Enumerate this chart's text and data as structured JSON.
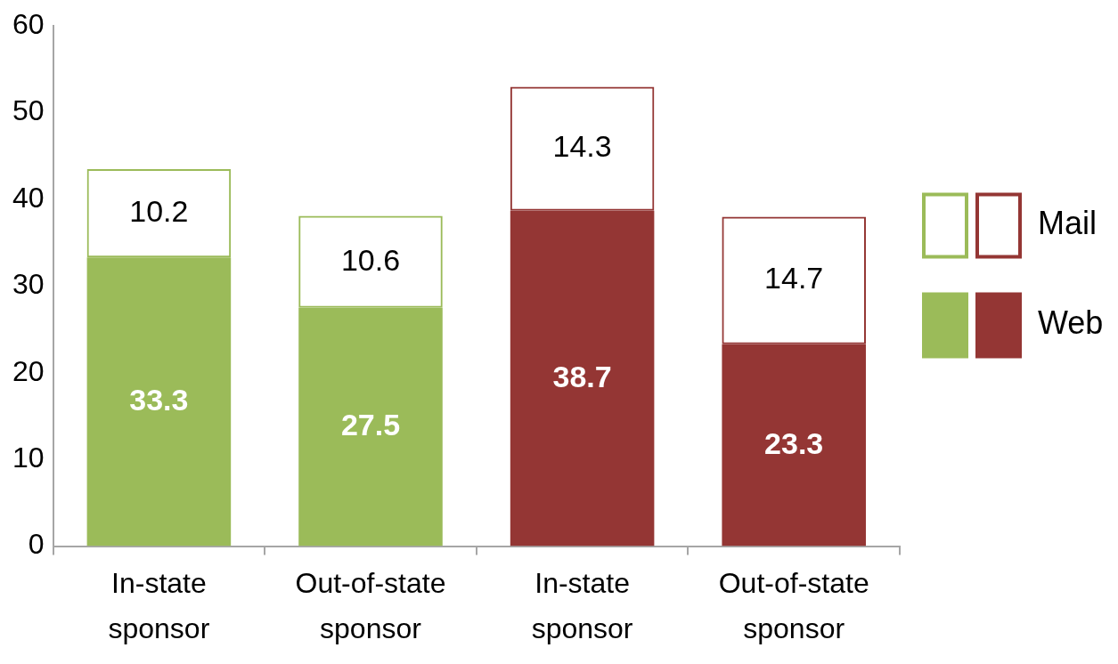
{
  "chart_data": {
    "type": "bar",
    "stacked": true,
    "categories": [
      "In-state sponsor",
      "Out-of-state sponsor",
      "In-state sponsor",
      "Out-of-state sponsor"
    ],
    "series": [
      {
        "name": "Web",
        "colors": [
          "#9bbb59",
          "#9bbb59",
          "#943634",
          "#943634"
        ],
        "values": [
          33.3,
          27.5,
          38.7,
          23.3
        ]
      },
      {
        "name": "Mail",
        "colors": [
          "#9bbb59",
          "#9bbb59",
          "#943634",
          "#943634"
        ],
        "values": [
          10.2,
          10.6,
          14.3,
          14.7
        ]
      }
    ],
    "ylim": [
      0,
      60
    ],
    "yticks": [
      0,
      10,
      20,
      30,
      40,
      50,
      60
    ],
    "grid": false,
    "legend": "right",
    "data_labels": true
  }
}
